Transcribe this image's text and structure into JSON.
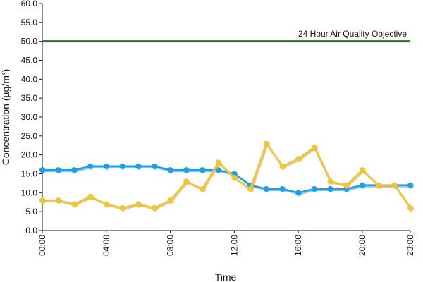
{
  "chart_data": {
    "type": "line",
    "title": "",
    "xlabel": "Time",
    "ylabel": "Concentration (µg/m³)",
    "ylim": [
      0,
      60
    ],
    "yticks": [
      "0.0",
      "5.0",
      "10.0",
      "15.0",
      "20.0",
      "25.0",
      "30.0",
      "35.0",
      "40.0",
      "45.0",
      "50.0",
      "55.0",
      "60.0"
    ],
    "x": [
      0,
      1,
      2,
      3,
      4,
      5,
      6,
      7,
      8,
      9,
      10,
      11,
      12,
      13,
      14,
      15,
      16,
      17,
      18,
      19,
      20,
      21,
      22,
      23
    ],
    "xticks": [
      {
        "x": 0,
        "label": "00:00"
      },
      {
        "x": 4,
        "label": "04:00"
      },
      {
        "x": 8,
        "label": "08:00"
      },
      {
        "x": 12,
        "label": "12:00"
      },
      {
        "x": 16,
        "label": "16:00"
      },
      {
        "x": 20,
        "label": "20:00"
      },
      {
        "x": 23,
        "label": "23:00"
      }
    ],
    "grid": false,
    "legend": "none",
    "series": [
      {
        "color": "#1a9fe8",
        "shadow": "#6fa3c8",
        "values": [
          16,
          16,
          16,
          17,
          17,
          17,
          17,
          17,
          16,
          16,
          16,
          16,
          15,
          12,
          11,
          11,
          10,
          11,
          11,
          11,
          12,
          12,
          12,
          12
        ]
      },
      {
        "color": "#f2c62e",
        "shadow": "#c9b27a",
        "values": [
          8,
          8,
          7,
          9,
          7,
          6,
          7,
          6,
          8,
          13,
          11,
          18,
          14,
          11,
          23,
          17,
          19,
          22,
          13,
          12,
          16,
          12,
          12,
          6
        ]
      }
    ],
    "reference_line": {
      "value": 50,
      "label": "24 Hour Air Quality Objective",
      "color": "#1f7a1f"
    }
  }
}
